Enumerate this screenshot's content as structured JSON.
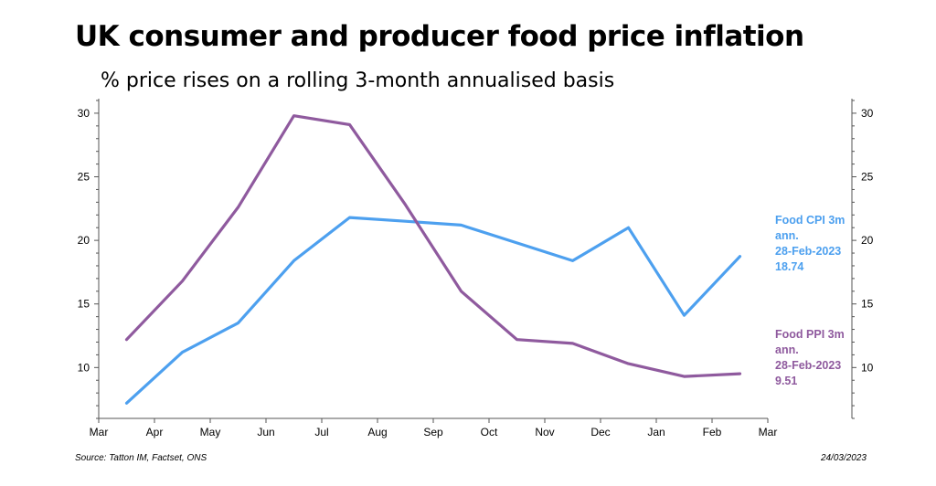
{
  "chart_data": {
    "type": "line",
    "title": "UK consumer and producer food price inflation",
    "subtitle": "% price rises on a rolling 3-month annualised basis",
    "x_tick_labels": [
      "Mar",
      "Apr",
      "May",
      "Jun",
      "Jul",
      "Aug",
      "Sep",
      "Oct",
      "Nov",
      "Dec",
      "Jan",
      "Feb",
      "Mar"
    ],
    "x_points": [
      "Mar",
      "Apr",
      "May",
      "Jun",
      "Jul",
      "Aug",
      "Sep",
      "Oct",
      "Nov",
      "Dec",
      "Jan",
      "Feb"
    ],
    "ylim": [
      6,
      31
    ],
    "y_ticks": [
      10,
      15,
      20,
      25,
      30
    ],
    "grid": false,
    "series": [
      {
        "name": "Food CPI 3m",
        "color": "#4da0ef",
        "values": [
          7.2,
          11.2,
          13.5,
          18.4,
          21.8,
          21.5,
          21.2,
          19.8,
          18.4,
          21.0,
          14.1,
          18.74
        ],
        "label_lines": [
          "Food CPI 3m",
          "ann.",
          "28-Feb-2023",
          "18.74"
        ]
      },
      {
        "name": "Food PPI 3m",
        "color": "#8f5a9e",
        "values": [
          12.2,
          16.8,
          22.6,
          29.8,
          29.1,
          22.8,
          16.0,
          12.2,
          11.9,
          10.3,
          9.3,
          9.51
        ],
        "label_lines": [
          "Food PPI 3m",
          "ann.",
          "28-Feb-2023",
          "9.51"
        ]
      }
    ]
  },
  "footer": {
    "source": "Source: Tatton IM, Factset, ONS",
    "date": "24/03/2023"
  }
}
